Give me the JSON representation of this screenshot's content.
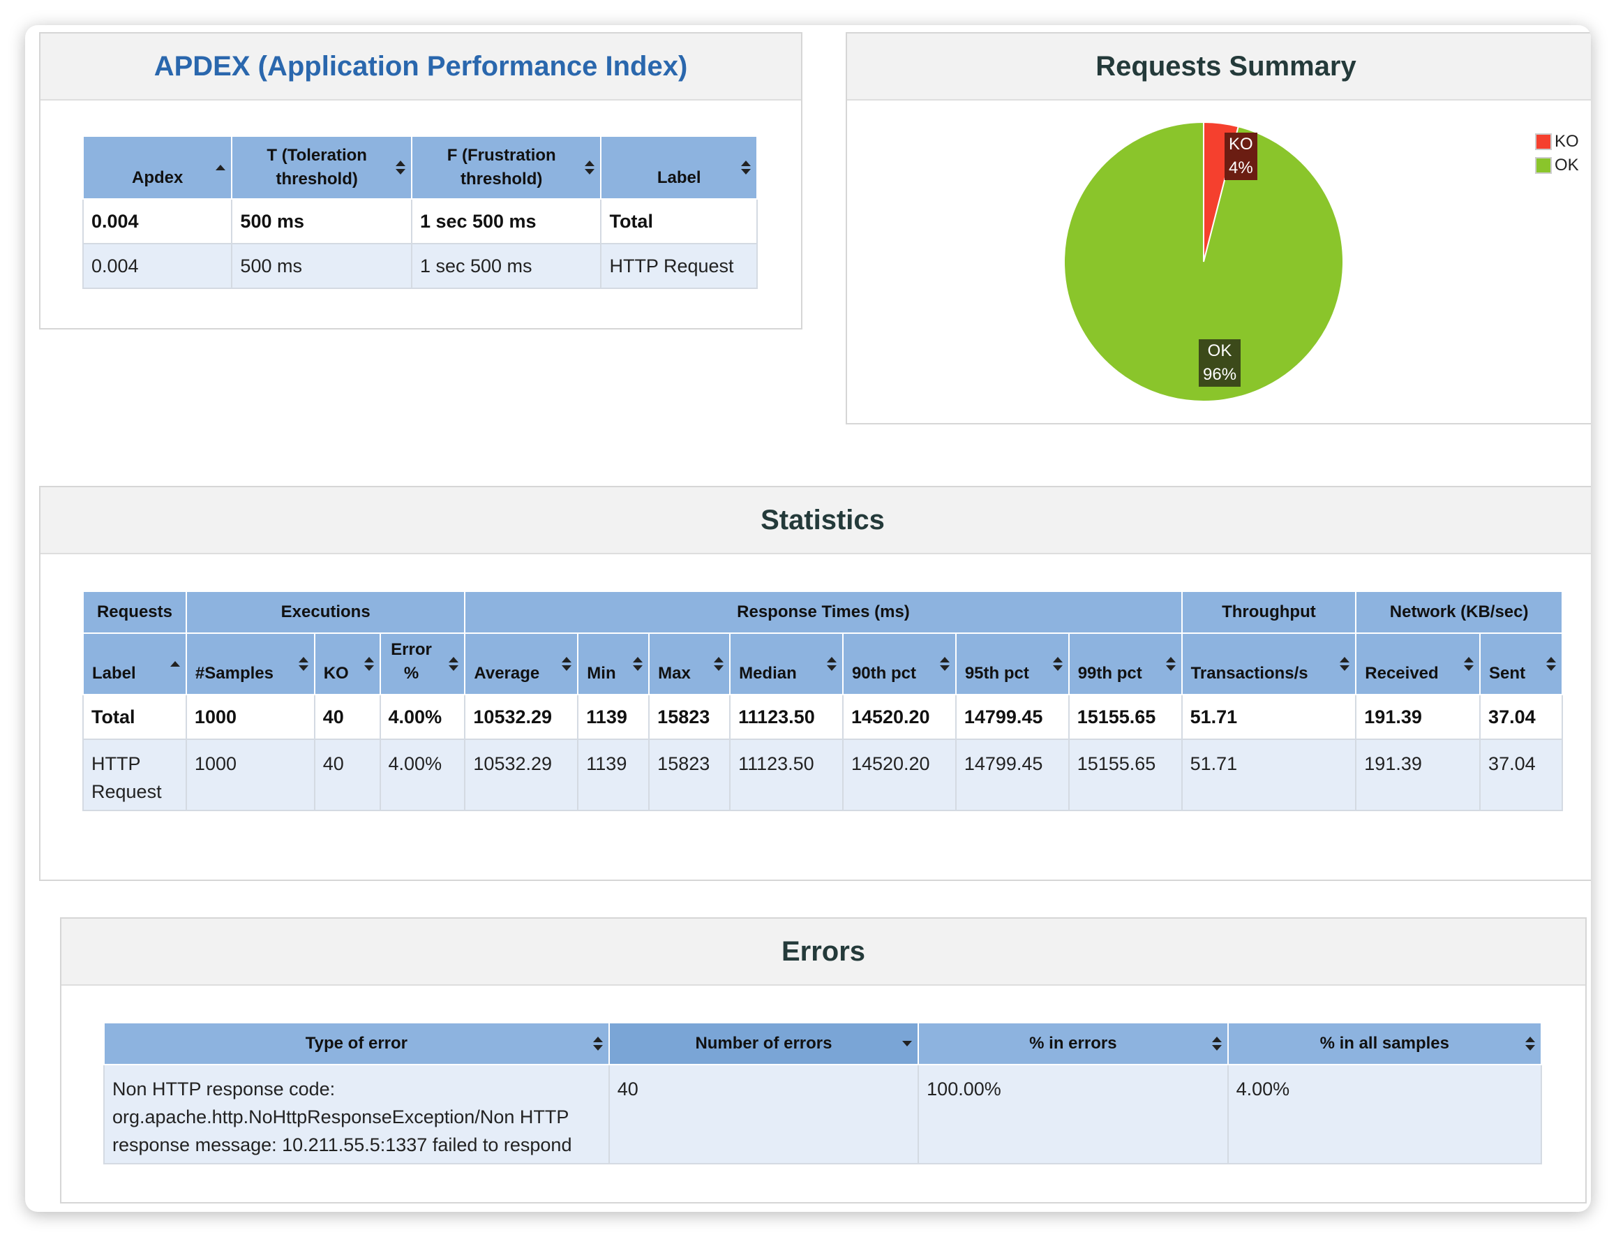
{
  "apdex": {
    "title": "APDEX (Application Performance Index)",
    "headers": [
      "Apdex",
      "T (Toleration threshold)",
      "F (Frustration threshold)",
      "Label"
    ],
    "rows": [
      [
        "0.004",
        "500 ms",
        "1 sec 500 ms",
        "Total"
      ],
      [
        "0.004",
        "500 ms",
        "1 sec 500 ms",
        "HTTP Request"
      ]
    ]
  },
  "requests_summary": {
    "title": "Requests Summary",
    "legend": [
      {
        "label": "KO",
        "color": "#f5402e"
      },
      {
        "label": "OK",
        "color": "#8ac52b"
      }
    ],
    "slices": [
      {
        "name": "KO",
        "percent_label": "4%",
        "value": 4,
        "color": "#f5402e"
      },
      {
        "name": "OK",
        "percent_label": "96%",
        "value": 96,
        "color": "#8ac52b"
      }
    ]
  },
  "chart_data": {
    "type": "pie",
    "title": "Requests Summary",
    "categories": [
      "KO",
      "OK"
    ],
    "values": [
      4,
      96
    ],
    "legend_position": "top-right"
  },
  "statistics": {
    "title": "Statistics",
    "groups": [
      "Requests",
      "Executions",
      "Response Times (ms)",
      "Throughput",
      "Network (KB/sec)"
    ],
    "columns": [
      "Label",
      "#Samples",
      "KO",
      "Error %",
      "Average",
      "Min",
      "Max",
      "Median",
      "90th pct",
      "95th pct",
      "99th pct",
      "Transactions/s",
      "Received",
      "Sent"
    ],
    "rows": [
      [
        "Total",
        "1000",
        "40",
        "4.00%",
        "10532.29",
        "1139",
        "15823",
        "11123.50",
        "14520.20",
        "14799.45",
        "15155.65",
        "51.71",
        "191.39",
        "37.04"
      ],
      [
        "HTTP Request",
        "1000",
        "40",
        "4.00%",
        "10532.29",
        "1139",
        "15823",
        "11123.50",
        "14520.20",
        "14799.45",
        "15155.65",
        "51.71",
        "191.39",
        "37.04"
      ]
    ]
  },
  "errors": {
    "title": "Errors",
    "headers": [
      "Type of error",
      "Number of errors",
      "% in errors",
      "% in all samples"
    ],
    "rows": [
      [
        "Non HTTP response code: org.apache.http.NoHttpResponseException/Non HTTP response message: 10.211.55.5:1337 failed to respond",
        "40",
        "100.00%",
        "4.00%"
      ]
    ]
  }
}
